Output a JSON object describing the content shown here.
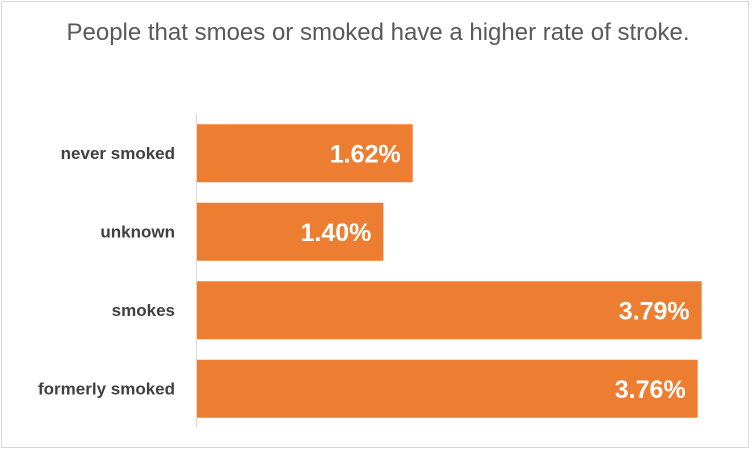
{
  "chart_data": {
    "type": "bar",
    "orientation": "horizontal",
    "title": "People that smoes or smoked have a higher rate of stroke.",
    "categories": [
      "never smoked",
      "unknown",
      "smokes",
      "formerly smoked"
    ],
    "values": [
      1.62,
      1.4,
      3.79,
      3.76
    ],
    "value_labels": [
      "1.62%",
      "1.40%",
      "3.79%",
      "3.76%"
    ],
    "xlim": [
      0,
      3.8
    ],
    "grid": false,
    "bar_color": "#ED7D31"
  }
}
